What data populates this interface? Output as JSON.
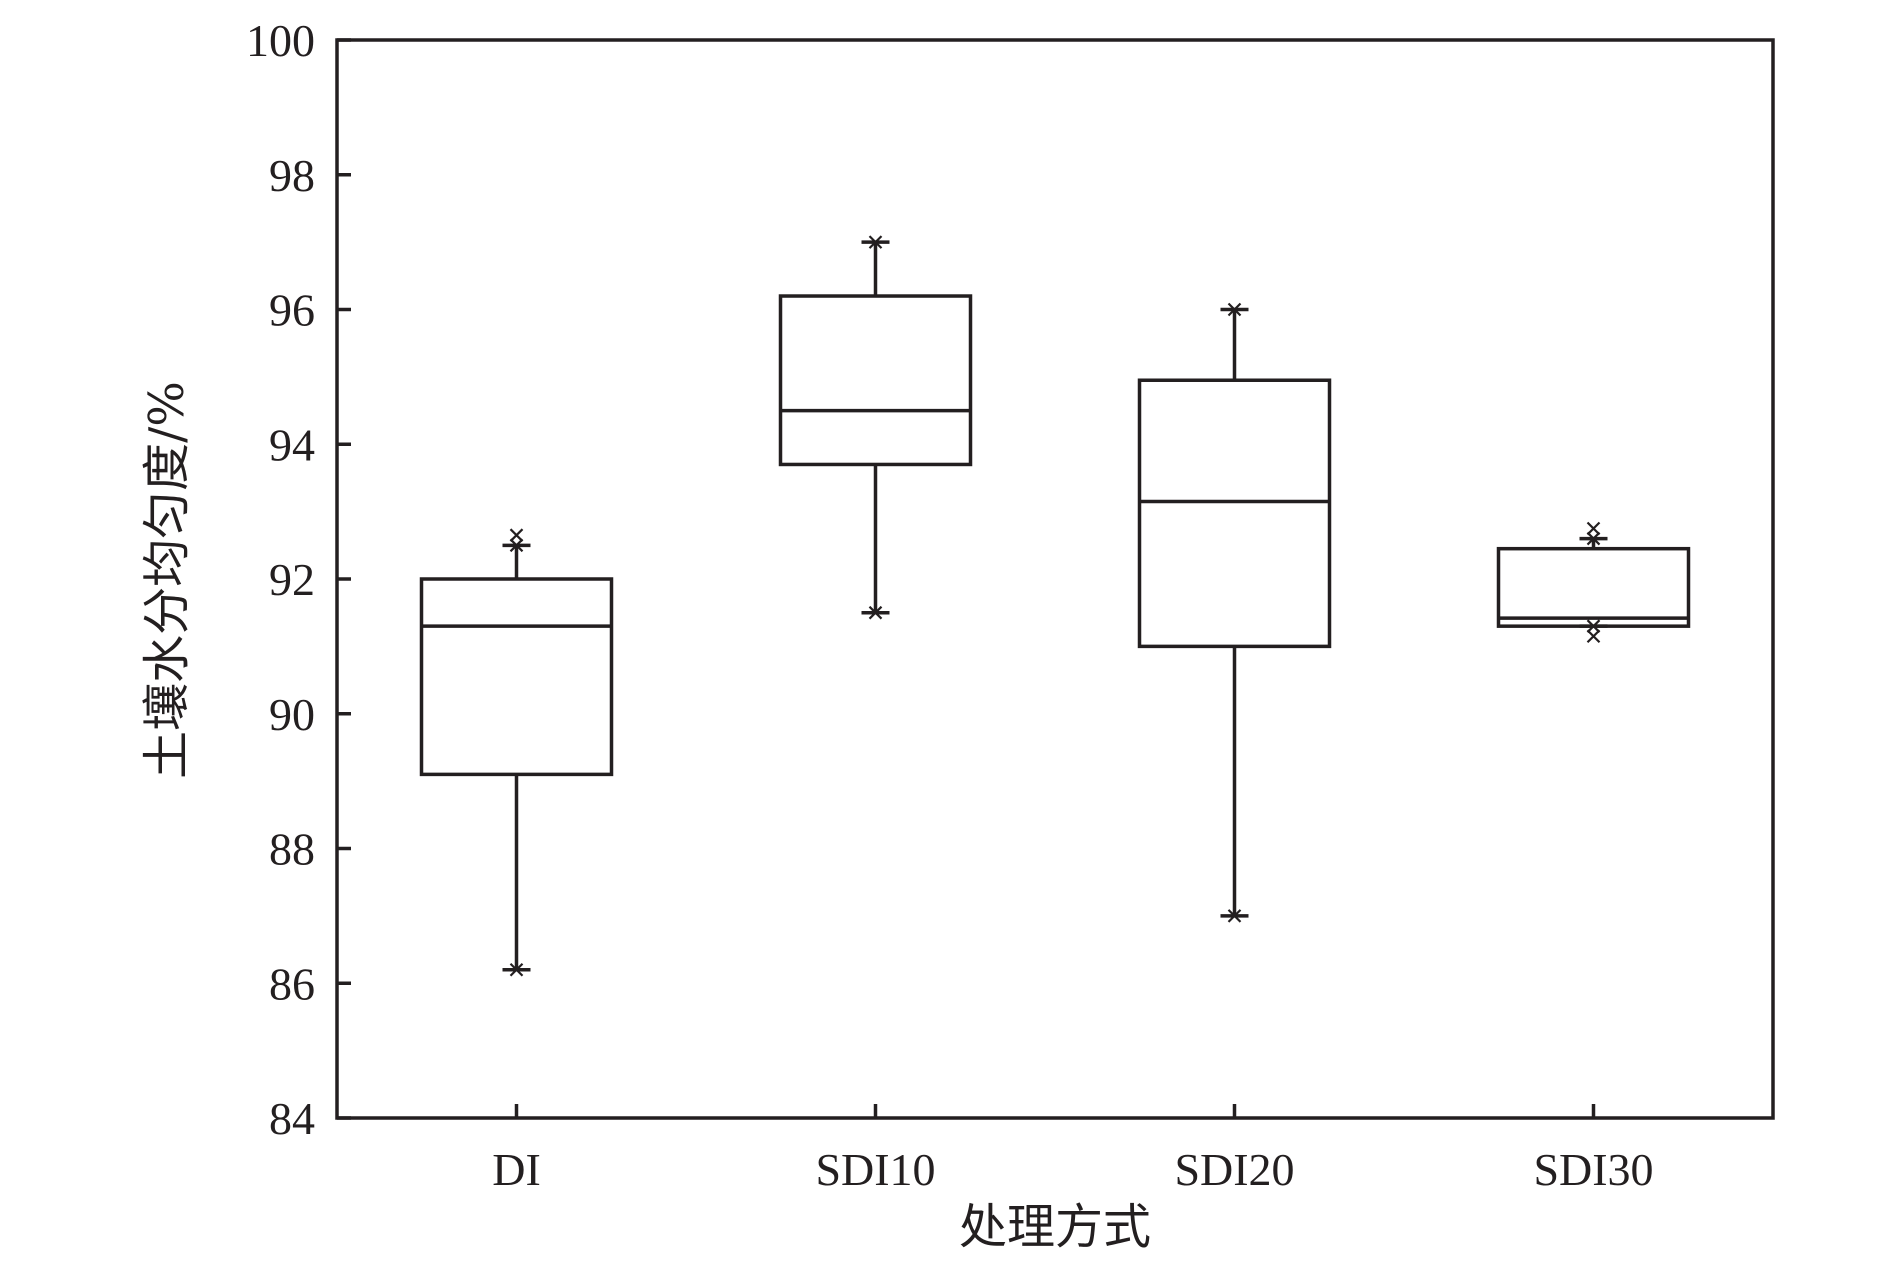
{
  "chart_data": {
    "type": "box",
    "title": "",
    "xlabel": "处理方式",
    "ylabel": "土壤水分均匀度/%",
    "ylim": [
      84,
      100
    ],
    "yticks": [
      84,
      86,
      88,
      90,
      92,
      94,
      96,
      98,
      100
    ],
    "categories": [
      "DI",
      "SDI10",
      "SDI20",
      "SDI30"
    ],
    "boxes": [
      {
        "category": "DI",
        "whisker_low": 86.2,
        "q1": 89.1,
        "median": 91.3,
        "q3": 92.0,
        "whisker_high": 92.5,
        "outliers": [
          92.65
        ]
      },
      {
        "category": "SDI10",
        "whisker_low": 91.5,
        "q1": 93.7,
        "median": 94.5,
        "q3": 96.2,
        "whisker_high": 97.0,
        "outliers": []
      },
      {
        "category": "SDI20",
        "whisker_low": 87.0,
        "q1": 91.0,
        "median": 93.15,
        "q3": 94.95,
        "whisker_high": 96.0,
        "outliers": []
      },
      {
        "category": "SDI30",
        "whisker_low": 91.3,
        "q1": 91.3,
        "median": 91.42,
        "q3": 92.45,
        "whisker_high": 92.6,
        "outliers": [
          92.75,
          91.15
        ]
      }
    ],
    "grid": false,
    "legend": "none"
  }
}
